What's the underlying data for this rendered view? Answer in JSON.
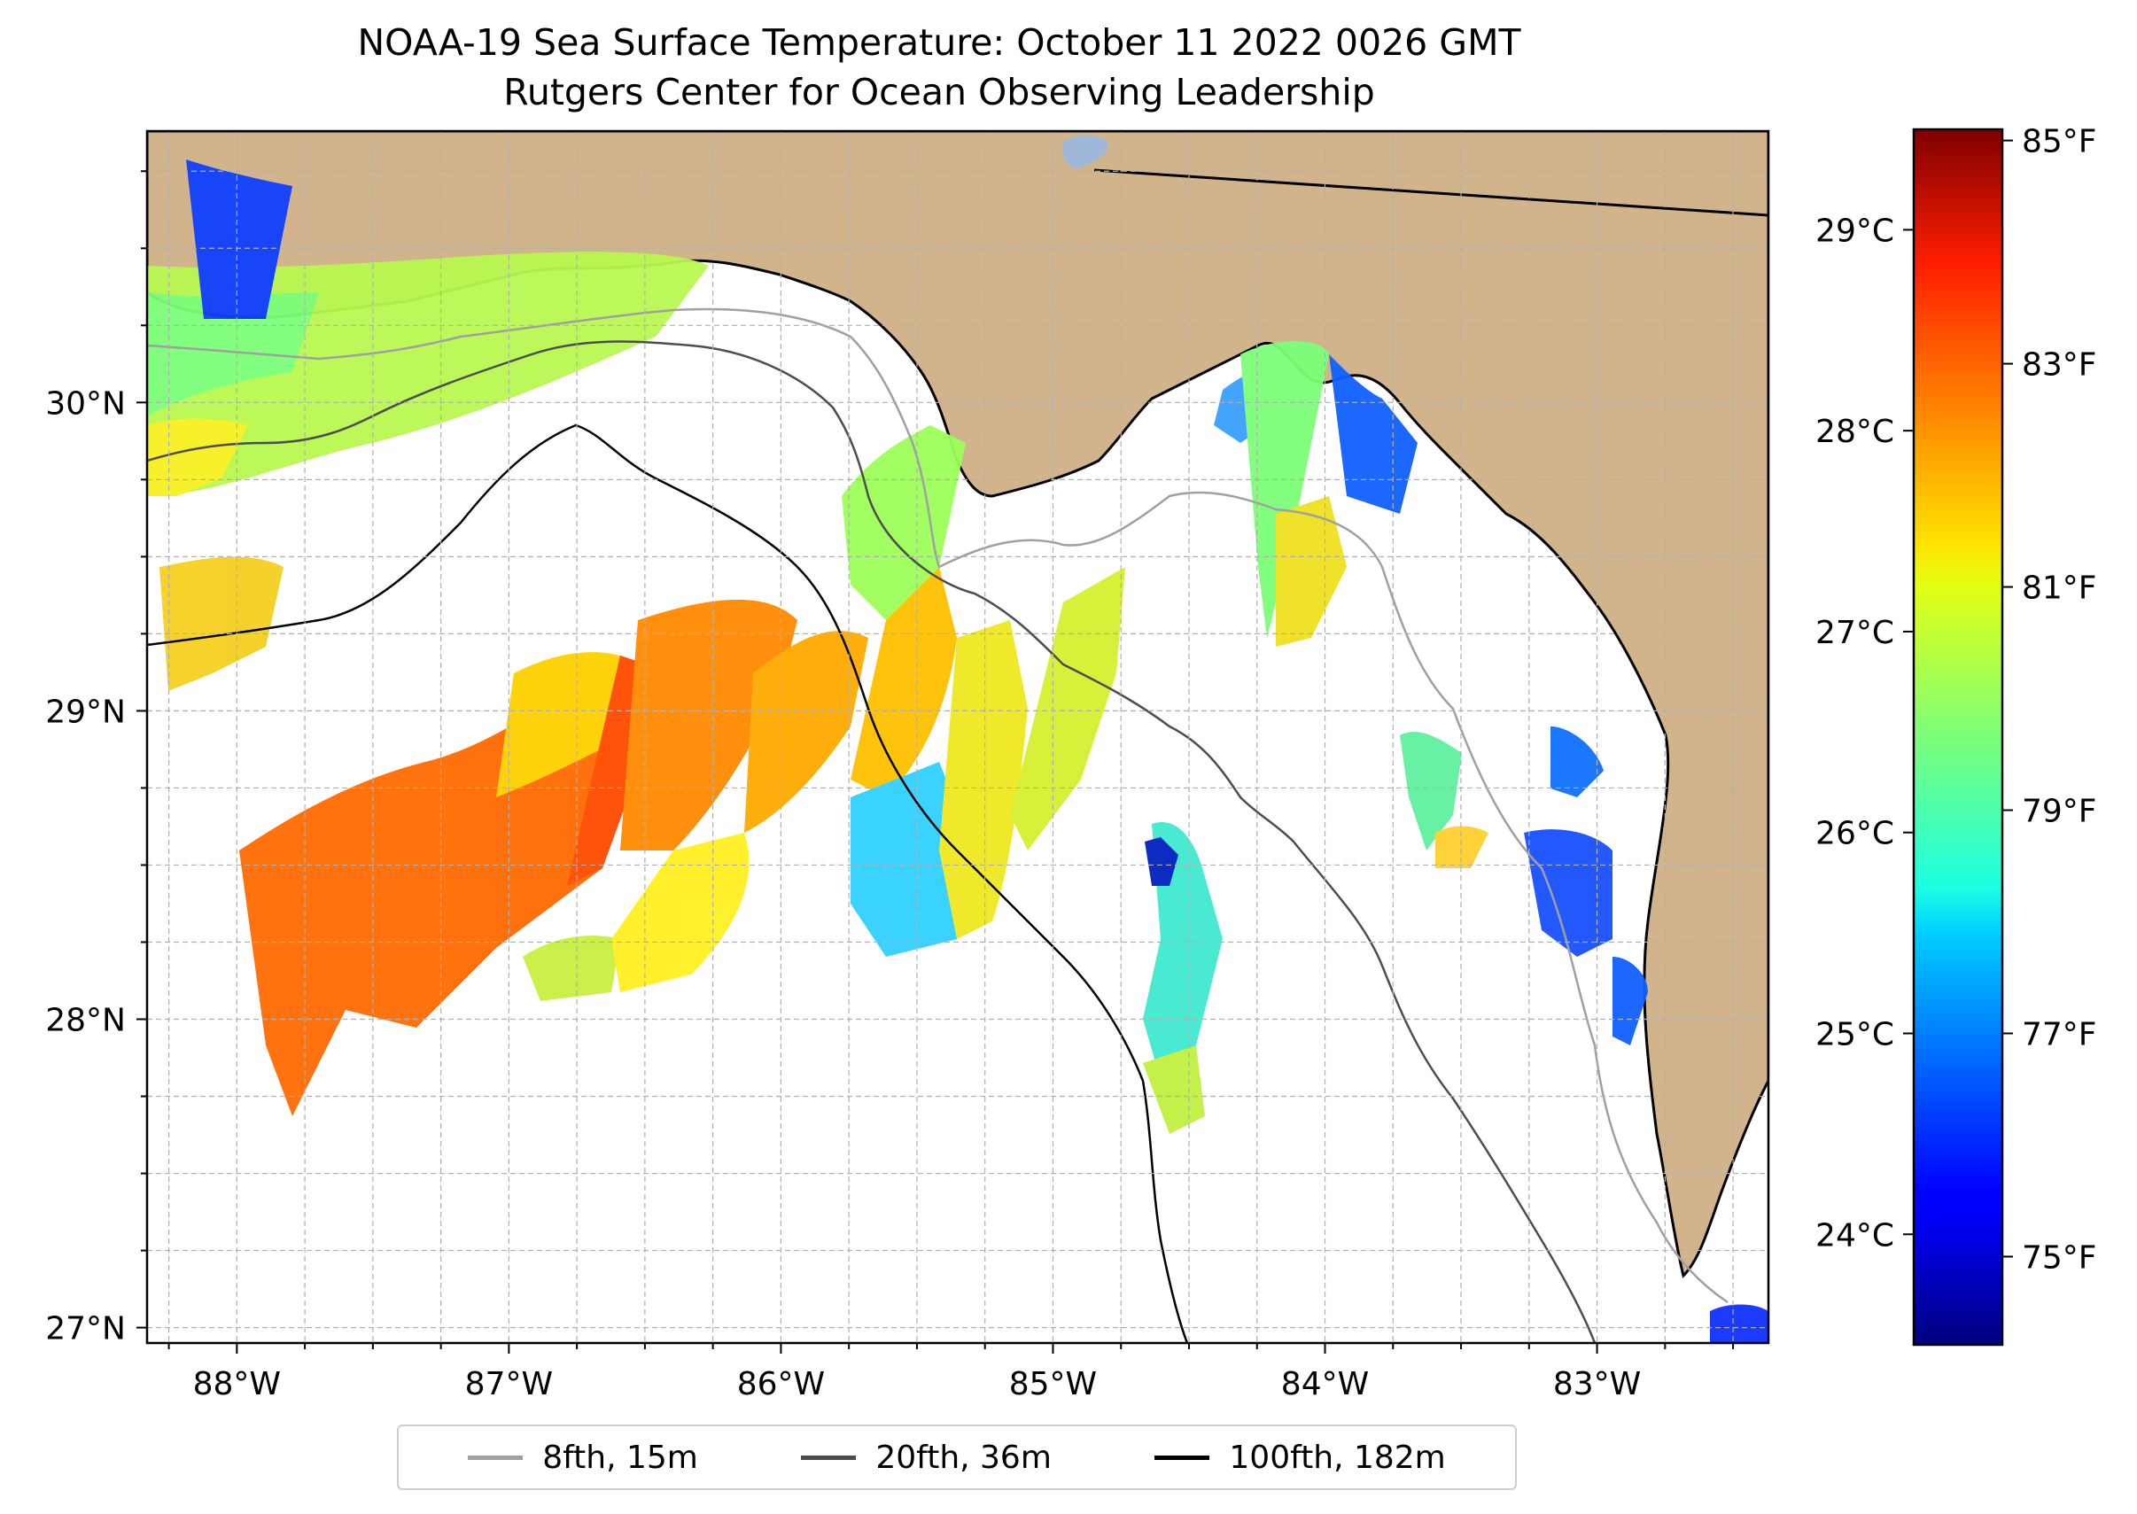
{
  "title": {
    "line1": "NOAA-19 Sea Surface Temperature: October 11 2022 0026 GMT",
    "line2": "Rutgers Center for Ocean Observing Leadership"
  },
  "map": {
    "lon_range": [
      -88.33,
      -82.37
    ],
    "lat_range": [
      26.95,
      30.88
    ],
    "lon_ticks": [
      {
        "value": -88,
        "label": "88°W"
      },
      {
        "value": -87,
        "label": "87°W"
      },
      {
        "value": -86,
        "label": "86°W"
      },
      {
        "value": -85,
        "label": "85°W"
      },
      {
        "value": -84,
        "label": "84°W"
      },
      {
        "value": -83,
        "label": "83°W"
      }
    ],
    "lat_ticks": [
      {
        "value": 27,
        "label": "27°N"
      },
      {
        "value": 28,
        "label": "28°N"
      },
      {
        "value": 29,
        "label": "29°N"
      },
      {
        "value": 30,
        "label": "30°N"
      }
    ],
    "grid": true,
    "land_color": "#D2B48C",
    "ocean_color": "#ffffff"
  },
  "colorbar": {
    "celsius_range": [
      23.45,
      29.5
    ],
    "celsius_ticks": [
      {
        "value": 24,
        "label": "24°C"
      },
      {
        "value": 25,
        "label": "25°C"
      },
      {
        "value": 26,
        "label": "26°C"
      },
      {
        "value": 27,
        "label": "27°C"
      },
      {
        "value": 28,
        "label": "28°C"
      },
      {
        "value": 29,
        "label": "29°C"
      }
    ],
    "fahrenheit_ticks": [
      {
        "value": 75,
        "label": "75°F"
      },
      {
        "value": 77,
        "label": "77°F"
      },
      {
        "value": 79,
        "label": "79°F"
      },
      {
        "value": 81,
        "label": "81°F"
      },
      {
        "value": 83,
        "label": "83°F"
      },
      {
        "value": 85,
        "label": "85°F"
      }
    ],
    "colormap": "jet"
  },
  "legend": {
    "placement": "bottom-center",
    "entries": [
      {
        "label": "8fth, 15m",
        "color": "#a0a0a0"
      },
      {
        "label": "20fth, 36m",
        "color": "#4d4d4d"
      },
      {
        "label": "100fth, 182m",
        "color": "#000000"
      }
    ]
  }
}
